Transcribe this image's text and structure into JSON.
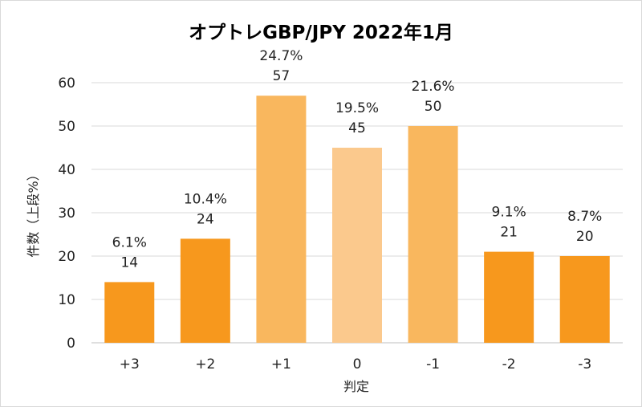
{
  "chart_data": {
    "type": "bar",
    "title": "オプトレGBP/JPY 2022年1月",
    "xlabel": "判定",
    "ylabel": "件数（上段%）",
    "ylim": [
      0,
      60
    ],
    "yticks": [
      0,
      10,
      20,
      30,
      40,
      50,
      60
    ],
    "grid": true,
    "legend": "none",
    "categories": [
      "+3",
      "+2",
      "+1",
      "0",
      "-1",
      "-2",
      "-3"
    ],
    "values": [
      14,
      24,
      57,
      45,
      50,
      21,
      20
    ],
    "percent_labels": [
      "6.1%",
      "10.4%",
      "24.7%",
      "19.5%",
      "21.6%",
      "9.1%",
      "8.7%"
    ],
    "bar_colors": [
      "#f7981d",
      "#f7981d",
      "#f9b75e",
      "#fbc98d",
      "#f9b75e",
      "#f7981d",
      "#f7981d"
    ]
  }
}
